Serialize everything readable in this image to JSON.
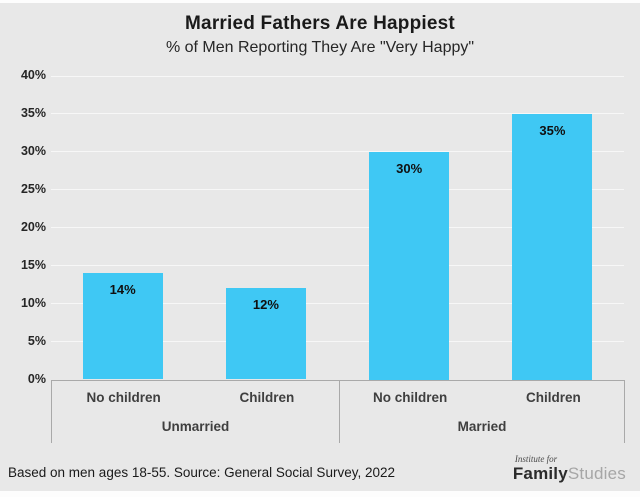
{
  "title": "Married Fathers Are Happiest",
  "subtitle": "% of Men Reporting They Are \"Very Happy\"",
  "chart_data": {
    "type": "bar",
    "title": "Married Fathers Are Happiest",
    "subtitle": "% of Men Reporting They Are \"Very Happy\"",
    "groups": [
      "Unmarried",
      "Married"
    ],
    "categories": [
      "No children",
      "Children",
      "No children",
      "Children"
    ],
    "values": [
      14,
      12,
      30,
      35
    ],
    "bar_labels": [
      "14%",
      "12%",
      "30%",
      "35%"
    ],
    "ylim": [
      0,
      40
    ],
    "ytick_step": 5,
    "ytick_labels": [
      "0%",
      "5%",
      "10%",
      "15%",
      "20%",
      "25%",
      "30%",
      "35%",
      "40%"
    ],
    "bar_color": "#3FC8F4",
    "background_color": "#e8e8e8",
    "gridline_color": "#f7f7f7",
    "grid": true,
    "legend_position": "none"
  },
  "footer": {
    "source": "Based on men ages 18-55. Source: General Social Survey, 2022",
    "logo": {
      "top_line": "Institute for",
      "bold_word": "Family",
      "light_word": "Studies"
    }
  }
}
